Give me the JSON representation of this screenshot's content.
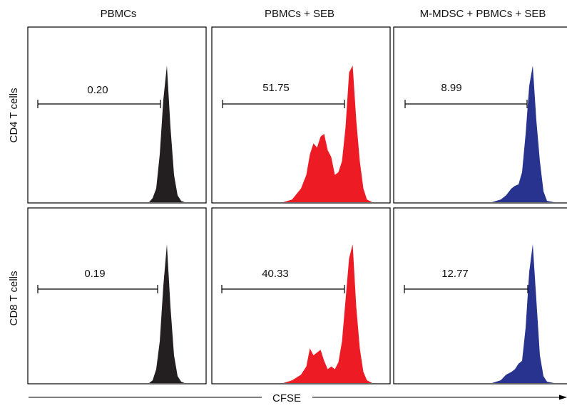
{
  "chart_data": {
    "type": "area",
    "columns": [
      "PBMCs",
      "PBMCs + SEB",
      "M-MDSC + PBMCs + SEB"
    ],
    "rows": [
      "CD4 T cells",
      "CD8 T cells"
    ],
    "xlabel": "CFSE",
    "colors": [
      "#231f20",
      "#ed1c24",
      "#27338f"
    ],
    "panels": [
      {
        "row": 0,
        "col": 0,
        "gate_value": "0.20",
        "x": [
          0.68,
          0.7,
          0.72,
          0.74,
          0.76,
          0.78,
          0.8,
          0.82,
          0.84,
          0.86,
          0.88,
          0.9
        ],
        "y": [
          0,
          0.03,
          0.1,
          0.35,
          0.75,
          1.0,
          0.55,
          0.2,
          0.05,
          0.01,
          0,
          0
        ]
      },
      {
        "row": 0,
        "col": 1,
        "gate_value": "51.75",
        "x": [
          0.4,
          0.45,
          0.5,
          0.53,
          0.55,
          0.57,
          0.59,
          0.61,
          0.63,
          0.65,
          0.67,
          0.69,
          0.71,
          0.73,
          0.75,
          0.77,
          0.79,
          0.81,
          0.83,
          0.85,
          0.87,
          0.9
        ],
        "y": [
          0,
          0.02,
          0.1,
          0.2,
          0.35,
          0.43,
          0.4,
          0.48,
          0.5,
          0.38,
          0.33,
          0.2,
          0.22,
          0.3,
          0.55,
          0.95,
          1.0,
          0.6,
          0.3,
          0.1,
          0.02,
          0
        ]
      },
      {
        "row": 0,
        "col": 2,
        "gate_value": "8.99",
        "x": [
          0.55,
          0.6,
          0.63,
          0.66,
          0.68,
          0.7,
          0.72,
          0.74,
          0.76,
          0.78,
          0.8,
          0.82,
          0.84,
          0.86,
          0.9
        ],
        "y": [
          0,
          0.02,
          0.05,
          0.1,
          0.12,
          0.13,
          0.22,
          0.5,
          0.85,
          1.0,
          0.6,
          0.3,
          0.08,
          0.01,
          0
        ]
      },
      {
        "row": 1,
        "col": 0,
        "gate_value": "0.19",
        "x": [
          0.68,
          0.7,
          0.72,
          0.74,
          0.76,
          0.78,
          0.8,
          0.82,
          0.84,
          0.86,
          0.88,
          0.9
        ],
        "y": [
          0,
          0.02,
          0.1,
          0.3,
          0.7,
          1.0,
          0.55,
          0.2,
          0.05,
          0.01,
          0,
          0
        ]
      },
      {
        "row": 1,
        "col": 1,
        "gate_value": "40.33",
        "x": [
          0.4,
          0.45,
          0.5,
          0.53,
          0.55,
          0.57,
          0.59,
          0.61,
          0.63,
          0.65,
          0.67,
          0.69,
          0.71,
          0.73,
          0.75,
          0.77,
          0.79,
          0.81,
          0.83,
          0.85,
          0.87,
          0.9
        ],
        "y": [
          0,
          0.02,
          0.06,
          0.12,
          0.25,
          0.2,
          0.22,
          0.24,
          0.16,
          0.1,
          0.12,
          0.1,
          0.15,
          0.3,
          0.6,
          0.9,
          1.0,
          0.55,
          0.25,
          0.08,
          0.02,
          0
        ]
      },
      {
        "row": 1,
        "col": 2,
        "gate_value": "12.77",
        "x": [
          0.55,
          0.6,
          0.63,
          0.66,
          0.68,
          0.7,
          0.72,
          0.74,
          0.76,
          0.78,
          0.8,
          0.82,
          0.84,
          0.86,
          0.9
        ],
        "y": [
          0,
          0.02,
          0.06,
          0.08,
          0.1,
          0.14,
          0.16,
          0.4,
          0.8,
          1.0,
          0.6,
          0.2,
          0.05,
          0.01,
          0
        ]
      }
    ]
  }
}
